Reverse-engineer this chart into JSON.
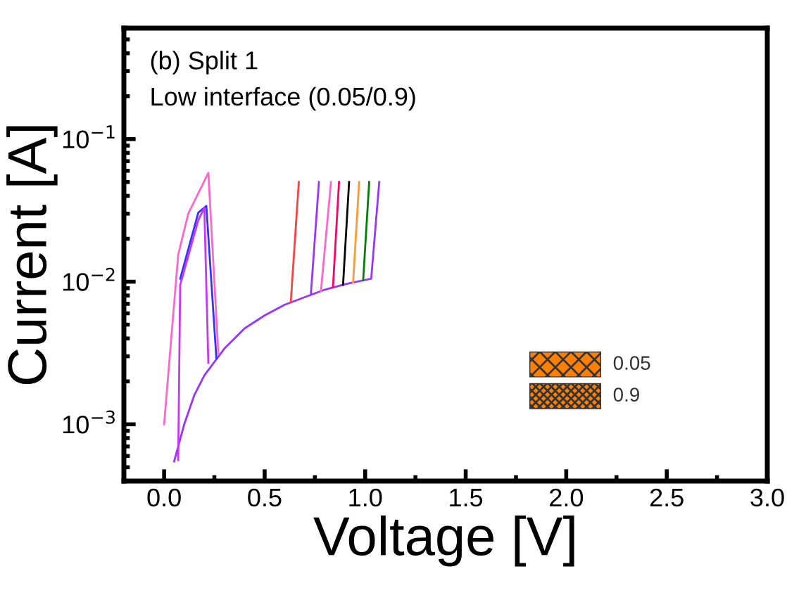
{
  "chart_data": {
    "type": "line",
    "xlabel": "Voltage [V]",
    "ylabel": "Current [A]",
    "log": "y",
    "xlim": [
      -0.2,
      3.0
    ],
    "ylim": [
      0.0004,
      0.6
    ],
    "xticks": [
      {
        "value": 0,
        "label": "0.0"
      },
      {
        "value": 0.5,
        "label": "0.5"
      },
      {
        "value": 1,
        "label": "1.0"
      },
      {
        "value": 1.5,
        "label": "1.5"
      },
      {
        "value": 2,
        "label": "2.0"
      },
      {
        "value": 2.5,
        "label": "2.5"
      },
      {
        "value": 3,
        "label": "3.0"
      }
    ],
    "yticks": [
      {
        "value": 0.001,
        "label": "10$^{−3}$"
      },
      {
        "value": 0.01,
        "label": "10$^{−2}$"
      },
      {
        "value": 0.1,
        "label": "10$^{−1}$"
      }
    ],
    "grid": false,
    "legend": false,
    "marker": "none",
    "line_style": "solid",
    "annotations": [
      "(b) Split 1",
      "Low interface (0.05/0.9)",
      "0.05",
      "0.9"
    ],
    "series": [
      {
        "color": "#9933ff",
        "x": [
          0.05,
          0.1,
          0.15,
          0.2,
          0.3,
          0.4,
          0.5,
          0.6,
          0.7,
          0.8,
          0.9,
          1.03,
          1.07
        ],
        "values": [
          0.00055,
          0.001,
          0.0016,
          0.0022,
          0.0034,
          0.0047,
          0.0058,
          0.0069,
          0.0078,
          0.0088,
          0.0096,
          0.0105,
          0.05
        ]
      },
      {
        "color": "#ff4040",
        "x": [
          0.63,
          0.67
        ],
        "values": [
          0.0072,
          0.05
        ]
      },
      {
        "color": "#9933ff",
        "x": [
          0.73,
          0.77
        ],
        "values": [
          0.0082,
          0.05
        ]
      },
      {
        "color": "#ff66cc",
        "x": [
          0.78,
          0.83
        ],
        "values": [
          0.0086,
          0.05
        ]
      },
      {
        "color": "#ff0066",
        "x": [
          0.84,
          0.87
        ],
        "values": [
          0.0092,
          0.05
        ]
      },
      {
        "color": "#000000",
        "x": [
          0.89,
          0.92
        ],
        "values": [
          0.0095,
          0.05
        ]
      },
      {
        "color": "#ff9933",
        "x": [
          0.94,
          0.97
        ],
        "values": [
          0.0099,
          0.05
        ]
      },
      {
        "color": "#008000",
        "x": [
          0.99,
          1.02
        ],
        "values": [
          0.0102,
          0.05
        ]
      },
      {
        "color": "#ff66cc",
        "x": [
          0.0,
          0.07,
          0.12,
          0.22,
          0.27
        ],
        "values": [
          0.001,
          0.0154,
          0.03,
          0.058,
          0.0031
        ]
      },
      {
        "color": "#3333ff",
        "x": [
          0.08,
          0.17,
          0.21,
          0.26
        ],
        "values": [
          0.0105,
          0.0305,
          0.034,
          0.0029
        ]
      },
      {
        "color": "#cc33ff",
        "x": [
          0.07,
          0.08,
          0.17,
          0.2,
          0.22
        ],
        "values": [
          0.00056,
          0.0095,
          0.027,
          0.033,
          0.0027
        ]
      }
    ]
  }
}
